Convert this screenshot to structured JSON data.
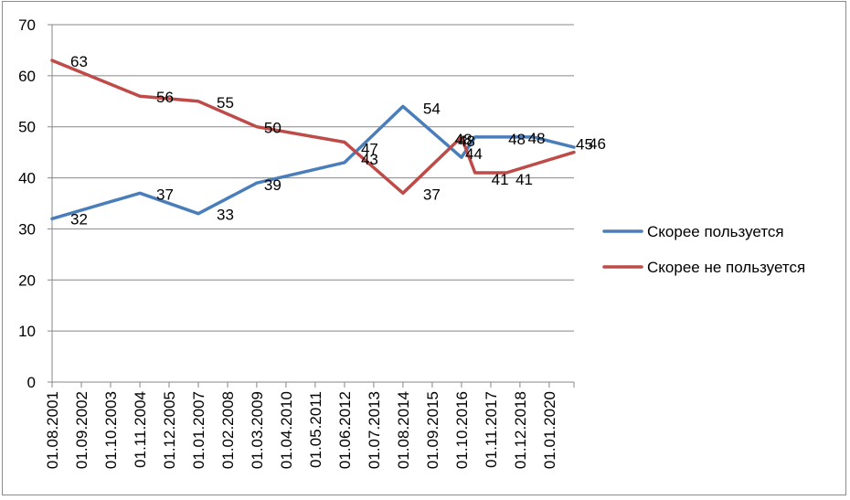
{
  "chart_data": {
    "type": "line",
    "title": "",
    "xlabel": "",
    "ylabel": "",
    "ylim": [
      0,
      70
    ],
    "yticks": [
      0,
      10,
      20,
      30,
      40,
      50,
      60,
      70
    ],
    "grid": true,
    "legend_position": "right",
    "categories": [
      "01.08.2001",
      "01.09.2002",
      "01.10.2003",
      "01.11.2004",
      "01.12.2005",
      "01.01.2007",
      "01.02.2008",
      "01.03.2009",
      "01.04.2010",
      "01.05.2011",
      "01.06.2012",
      "01.07.2013",
      "01.08.2014",
      "01.09.2015",
      "01.10.2016",
      "01.11.2017",
      "01.12.2018",
      "01.01.2020"
    ],
    "series": [
      {
        "name": "Скорее пользуется",
        "color": "#4a7ebb",
        "points": [
          {
            "x": "01.08.2001",
            "y": 32,
            "label": "32"
          },
          {
            "x": "01.11.2004",
            "y": 37,
            "label": "37"
          },
          {
            "x": "01.01.2007",
            "y": 33,
            "label": "33"
          },
          {
            "x": "01.03.2009",
            "y": 39,
            "label": "39"
          },
          {
            "x": "01.06.2012",
            "y": 43,
            "label": "43"
          },
          {
            "x": "01.08.2014",
            "y": 54,
            "label": "54"
          },
          {
            "x": "01.10.2016",
            "y": 44,
            "label": "44"
          },
          {
            "x": "01.04.2017",
            "y": 48,
            "label": "48"
          },
          {
            "x": "01.06.2018",
            "y": 48,
            "label": "48"
          },
          {
            "x": "01.06.2019",
            "y": 48,
            "label": "48"
          },
          {
            "x": "01.12.2020",
            "y": 46,
            "label": "46"
          }
        ]
      },
      {
        "name": "Скорее не пользуется",
        "color": "#be4b48",
        "points": [
          {
            "x": "01.08.2001",
            "y": 63,
            "label": "63"
          },
          {
            "x": "01.11.2004",
            "y": 56,
            "label": "56"
          },
          {
            "x": "01.01.2007",
            "y": 55,
            "label": "55"
          },
          {
            "x": "01.03.2009",
            "y": 50,
            "label": "50"
          },
          {
            "x": "01.06.2012",
            "y": 47,
            "label": "47"
          },
          {
            "x": "01.08.2014",
            "y": 37,
            "label": "37"
          },
          {
            "x": "01.10.2016",
            "y": 48,
            "label": "48"
          },
          {
            "x": "01.04.2017",
            "y": 41,
            "label": "41"
          },
          {
            "x": "01.06.2018",
            "y": 41,
            "label": "41"
          },
          {
            "x": "01.12.2020",
            "y": 45,
            "label": "45"
          }
        ]
      }
    ]
  }
}
